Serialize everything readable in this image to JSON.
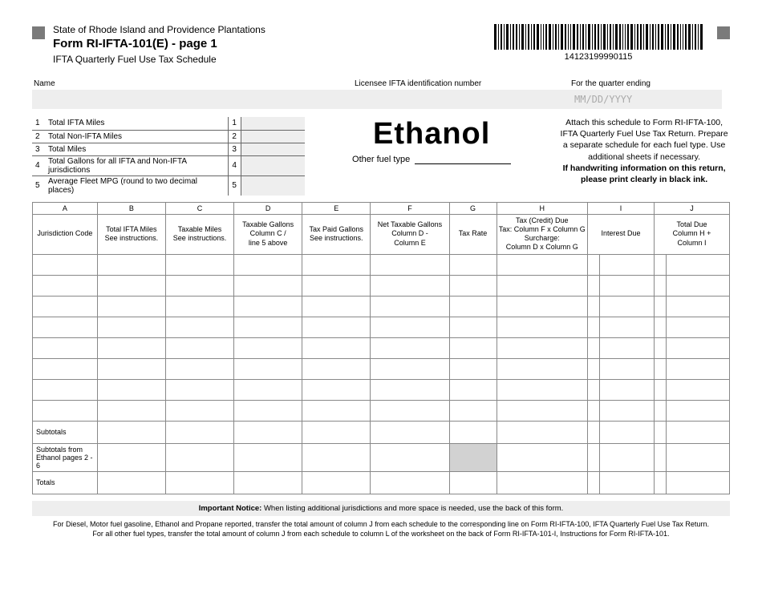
{
  "header": {
    "state": "State of Rhode Island and Providence Plantations",
    "form": "Form RI-IFTA-101(E) - page 1",
    "subtitle": "IFTA Quarterly Fuel Use Tax Schedule",
    "barcode_number": "14123199990115"
  },
  "ident": {
    "name_label": "Name",
    "lic_label": "Licensee IFTA identification number",
    "qtr_label": "For the quarter ending",
    "qtr_placeholder": "MM/DD/YYYY"
  },
  "lines": [
    {
      "n": "1",
      "label": "Total IFTA Miles",
      "n2": "1"
    },
    {
      "n": "2",
      "label": "Total Non-IFTA Miles",
      "n2": "2"
    },
    {
      "n": "3",
      "label": "Total Miles",
      "n2": "3"
    },
    {
      "n": "4",
      "label": "Total Gallons for all IFTA and Non-IFTA jurisdictions",
      "n2": "4"
    },
    {
      "n": "5",
      "label": "Average Fleet MPG (round to two decimal places)",
      "n2": "5"
    }
  ],
  "fuel": {
    "title": "Ethanol",
    "other_label": "Other fuel type"
  },
  "attach": {
    "text": "Attach this schedule to Form RI-IFTA-100, IFTA Quarterly Fuel Use Tax Return.  Prepare a separate schedule for each fuel type.  Use additional sheets if necessary.",
    "bold": "If handwriting information on this return, please print clearly in black ink."
  },
  "cols": {
    "A": "A",
    "B": "B",
    "C": "C",
    "D": "D",
    "E": "E",
    "F": "F",
    "G": "G",
    "H": "H",
    "I": "I",
    "J": "J",
    "hA": "Jurisdiction Code",
    "hB": "Total IFTA Miles\nSee instructions.",
    "hC": "Taxable Miles\nSee instructions.",
    "hD": "Taxable Gallons\nColumn C /\nline 5 above",
    "hE": "Tax Paid Gallons\nSee instructions.",
    "hF": "Net Taxable Gallons\nColumn D -\nColumn E",
    "hG": "Tax Rate",
    "hH": "Tax (Credit) Due\nTax: Column F x Column G\nSurcharge:\nColumn D x Column G",
    "hI": "Interest Due",
    "hJ": "Total Due\nColumn H +\nColumn I"
  },
  "summary": {
    "r1": "Subtotals",
    "r2": "Subtotals from\nEthanol pages 2 - 6",
    "r3": "Totals"
  },
  "notice": {
    "label": "Important Notice:",
    "text": " When listing additional jurisdictions and more space is needed, use the back of this form."
  },
  "footer": "For Diesel, Motor fuel gasoline, Ethanol and Propane reported, transfer the total amount of column J from each schedule to the corresponding line on Form RI-IFTA-100, IFTA Quarterly Fuel Use Tax Return.\nFor all other fuel types, transfer the total amount of column J from each schedule to column L of the worksheet on the back of Form RI-IFTA-101-I, Instructions for Form RI-IFTA-101.",
  "style": {
    "colors": {
      "grey_box": "#eeeeee",
      "dark_sq": "#7a7a7a",
      "border": "#888888",
      "shade": "#d2d2d2"
    }
  }
}
